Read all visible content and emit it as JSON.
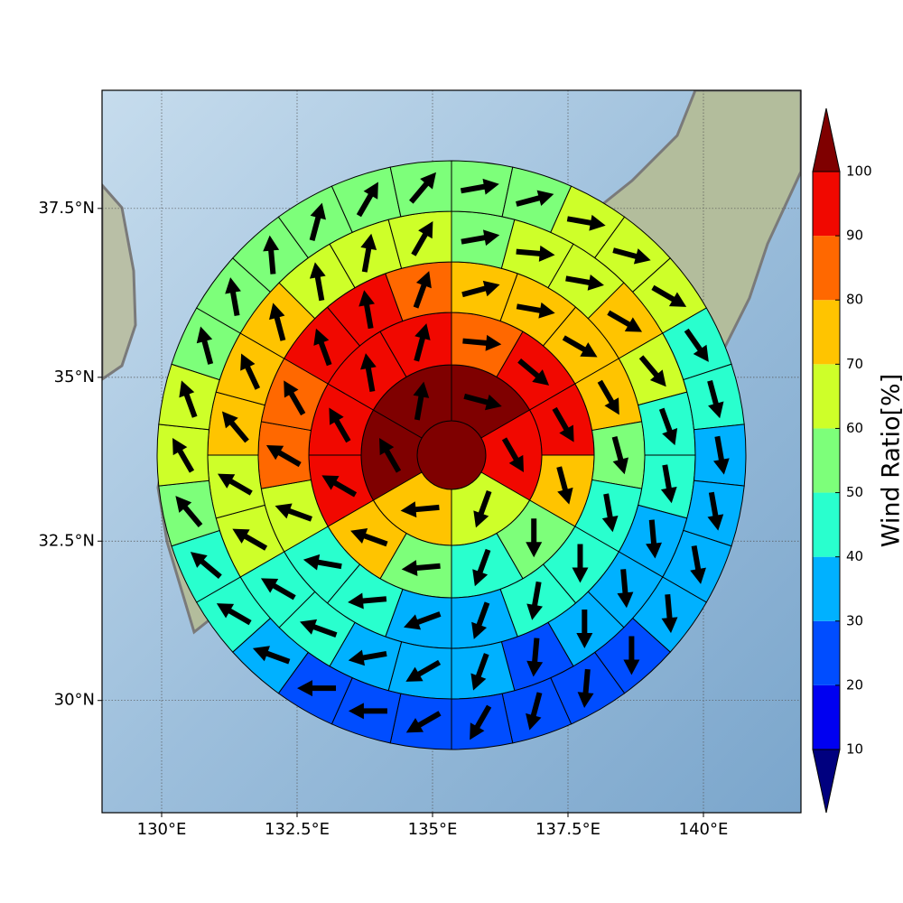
{
  "chart_data": {
    "type": "sectormap",
    "xlim": [
      128.9,
      141.8
    ],
    "ylim": [
      28.2,
      39.2
    ],
    "xticks": [
      {
        "value": 130,
        "label": "130°E"
      },
      {
        "value": 132.5,
        "label": "132.5°E"
      },
      {
        "value": 135,
        "label": "135°E"
      },
      {
        "value": 137.5,
        "label": "137.5°E"
      },
      {
        "value": 140,
        "label": "140°E"
      }
    ],
    "yticks": [
      {
        "value": 30,
        "label": "30°N"
      },
      {
        "value": 32.5,
        "label": "32.5°N"
      },
      {
        "value": 35,
        "label": "35°N"
      },
      {
        "value": 37.5,
        "label": "37.5°N"
      }
    ],
    "grid": true,
    "colorbar": {
      "label": "Wind Ratio[%]",
      "ticks": [
        10,
        20,
        30,
        40,
        50,
        60,
        70,
        80,
        90,
        100
      ],
      "colors": [
        "#00007f",
        "#0000f1",
        "#004dff",
        "#00b1ff",
        "#29ffce",
        "#7dff7a",
        "#ceff29",
        "#ffc400",
        "#ff6800",
        "#f10800",
        "#7f0000"
      ]
    },
    "center": {
      "value": 100
    },
    "rings": [
      {
        "values": [
          100,
          95,
          65,
          75,
          100,
          100
        ],
        "directions": [
          105,
          150,
          200,
          265,
          330,
          10
        ]
      },
      {
        "values": [
          85,
          95,
          95,
          75,
          55,
          45,
          55,
          75,
          95,
          95,
          95,
          95
        ],
        "directions": [
          95,
          130,
          150,
          165,
          180,
          200,
          265,
          290,
          300,
          330,
          350,
          15
        ]
      },
      {
        "values": [
          75,
          75,
          75,
          75,
          55,
          45,
          45,
          45,
          35,
          35,
          45,
          45,
          65,
          85,
          85,
          95,
          95,
          85
        ],
        "directions": [
          75,
          100,
          120,
          150,
          165,
          170,
          180,
          190,
          200,
          250,
          265,
          280,
          290,
          300,
          330,
          340,
          350,
          20
        ]
      },
      {
        "values": [
          55,
          65,
          65,
          75,
          65,
          45,
          45,
          35,
          35,
          35,
          25,
          35,
          35,
          35,
          45,
          45,
          65,
          65,
          75,
          75,
          75,
          65,
          65,
          65
        ],
        "directions": [
          80,
          95,
          100,
          120,
          140,
          160,
          170,
          175,
          175,
          180,
          185,
          200,
          240,
          260,
          290,
          300,
          300,
          300,
          320,
          335,
          345,
          350,
          10,
          30
        ]
      },
      {
        "values": [
          55,
          55,
          65,
          65,
          65,
          45,
          45,
          35,
          35,
          35,
          35,
          25,
          25,
          25,
          25,
          25,
          25,
          25,
          35,
          45,
          45,
          55,
          65,
          65,
          55,
          55,
          55,
          55,
          55,
          55
        ],
        "directions": [
          80,
          75,
          100,
          105,
          120,
          145,
          165,
          170,
          170,
          170,
          175,
          180,
          185,
          195,
          210,
          240,
          270,
          270,
          290,
          300,
          310,
          320,
          330,
          340,
          345,
          350,
          355,
          15,
          30,
          40
        ]
      }
    ]
  }
}
